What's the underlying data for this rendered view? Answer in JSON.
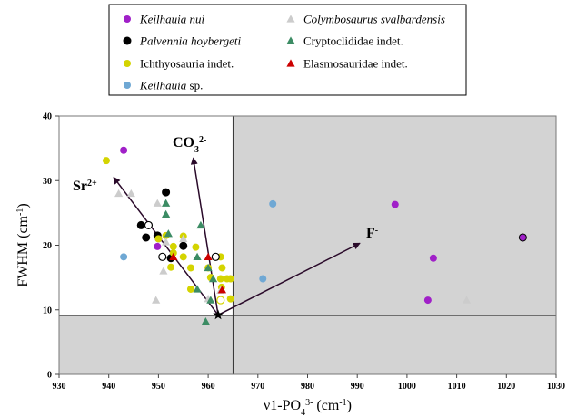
{
  "chart_data": {
    "type": "scatter",
    "xlabel": "ν1-PO₄³⁻ (cm⁻¹)",
    "ylabel": "FWHM (cm⁻¹)",
    "xlim": [
      930,
      1030
    ],
    "ylim": [
      0,
      40
    ],
    "xticks": [
      930,
      940,
      950,
      960,
      970,
      980,
      990,
      1000,
      1010,
      1020,
      1030
    ],
    "yticks": [
      0,
      10,
      20,
      30,
      40
    ],
    "grid": false,
    "legend_position": "top",
    "shaded_regions": [
      {
        "x": [
          930,
          965
        ],
        "y": [
          0,
          9.1
        ]
      },
      {
        "x": [
          965,
          1030
        ],
        "y": [
          0,
          40
        ]
      }
    ],
    "reference_lines": {
      "x": 965,
      "y": 9.1
    },
    "series": [
      {
        "name": "Keilhauia nui",
        "marker": "circle",
        "color": "#a020c8",
        "points": [
          [
            943,
            34.7
          ],
          [
            950,
            21.0
          ],
          [
            949.8,
            19.8
          ],
          [
            997.6,
            26.3
          ],
          [
            1005.3,
            18.0
          ],
          [
            1004.2,
            11.5
          ],
          [
            1023.3,
            21.2
          ]
        ]
      },
      {
        "name": "Palvennia hoybergeti",
        "marker": "circle",
        "color": "#000000",
        "points": [
          [
            951.5,
            28.2
          ],
          [
            946.5,
            23.1
          ],
          [
            947.5,
            21.2
          ],
          [
            949.8,
            21.5
          ],
          [
            955,
            19.9
          ],
          [
            952.5,
            18.0
          ]
        ]
      },
      {
        "name": "Ichthyosauria indet.",
        "marker": "circle",
        "color": "#d4d400",
        "points": [
          [
            939.5,
            33.1
          ],
          [
            950,
            21.0
          ],
          [
            951.5,
            21.5
          ],
          [
            953,
            19.8
          ],
          [
            955,
            21.4
          ],
          [
            953,
            18.8
          ],
          [
            955,
            18.2
          ],
          [
            957.5,
            19.7
          ],
          [
            952.5,
            16.6
          ],
          [
            956.5,
            16.5
          ],
          [
            956.5,
            13.2
          ],
          [
            960,
            16.5
          ],
          [
            962.5,
            14.8
          ],
          [
            962.8,
            16.5
          ],
          [
            963.8,
            14.8
          ],
          [
            964.5,
            14.8
          ],
          [
            962.7,
            13.5
          ],
          [
            964.5,
            11.7
          ],
          [
            962.5,
            18.2
          ],
          [
            960.5,
            15.0
          ]
        ]
      },
      {
        "name": "Keilhauia sp.",
        "marker": "circle",
        "color": "#6fa8d4",
        "points": [
          [
            943,
            18.2
          ],
          [
            973,
            26.4
          ],
          [
            971,
            14.8
          ]
        ]
      },
      {
        "name": "Colymbosaurus svalbardensis",
        "marker": "triangle",
        "color": "#cccccc",
        "points": [
          [
            942,
            28.0
          ],
          [
            944.5,
            28.0
          ],
          [
            949.8,
            26.5
          ],
          [
            949.5,
            11.5
          ],
          [
            951.5,
            20.5
          ],
          [
            951,
            16.0
          ],
          [
            960,
            11.7
          ],
          [
            955,
            21.0
          ],
          [
            962.5,
            13.0
          ],
          [
            1012,
            11.5
          ]
        ]
      },
      {
        "name": "Cryptoclididae indet.",
        "marker": "triangle",
        "color": "#3c8c64",
        "points": [
          [
            951.5,
            26.5
          ],
          [
            951.5,
            24.8
          ],
          [
            958.5,
            23.1
          ],
          [
            952,
            21.8
          ],
          [
            957.8,
            18.2
          ],
          [
            957.8,
            13.2
          ],
          [
            960,
            16.5
          ],
          [
            961,
            14.8
          ],
          [
            959.5,
            8.2
          ],
          [
            960.5,
            11.5
          ]
        ]
      },
      {
        "name": "Elasmosauridae indet.",
        "marker": "triangle",
        "color": "#cc0000",
        "points": [
          [
            960,
            18.2
          ],
          [
            962.8,
            13.1
          ],
          [
            953,
            18.2
          ]
        ]
      },
      {
        "name": "",
        "marker": "open-circle",
        "color": "#000000",
        "points": [
          [
            948,
            23.1
          ],
          [
            950.8,
            18.2
          ],
          [
            961.5,
            18.2
          ]
        ]
      },
      {
        "name": "",
        "marker": "open-circle",
        "color": "#d4d400",
        "points": [
          [
            962.5,
            11.5
          ]
        ]
      }
    ],
    "origin": {
      "marker": "star",
      "x": 962,
      "y": 9.2
    },
    "vectors": [
      {
        "label": "Sr",
        "sup": "2+",
        "to": [
          941,
          30.5
        ]
      },
      {
        "label": "CO",
        "sub": "3",
        "sup": "2-",
        "to": [
          957,
          33.5
        ]
      },
      {
        "label": "F",
        "sup": "-",
        "to": [
          990.5,
          20.3
        ]
      }
    ],
    "legend": [
      {
        "label": "Keilhauia nui",
        "italic": true,
        "marker": "circle",
        "color": "#a020c8"
      },
      {
        "label": "Palvennia hoybergeti",
        "italic": true,
        "marker": "circle",
        "color": "#000000"
      },
      {
        "label": "Ichthyosauria indet.",
        "italic": false,
        "marker": "circle",
        "color": "#d4d400"
      },
      {
        "label": "Keilhauia sp.",
        "italic": false,
        "italic_part": "Keilhauia",
        "marker": "circle",
        "color": "#6fa8d4"
      },
      {
        "label": "Colymbosaurus svalbardensis",
        "italic": true,
        "marker": "triangle",
        "color": "#cccccc"
      },
      {
        "label": "Cryptoclididae indet.",
        "italic": false,
        "marker": "triangle",
        "color": "#3c8c64"
      },
      {
        "label": "Elasmosauridae indet.",
        "italic": false,
        "marker": "triangle",
        "color": "#cc0000"
      }
    ]
  }
}
